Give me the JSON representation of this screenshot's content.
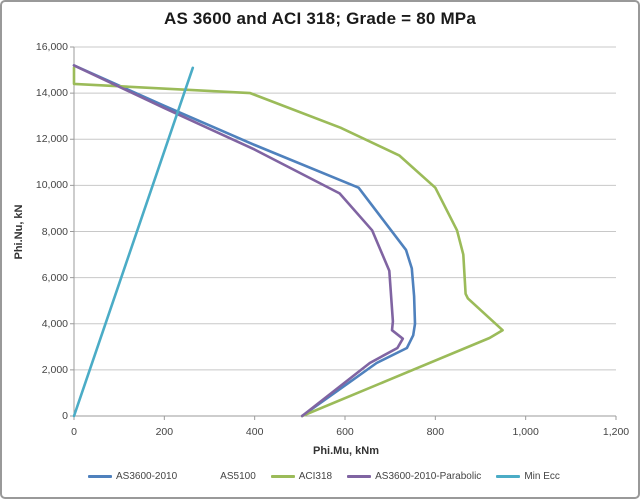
{
  "title": "AS 3600 and ACI 318; Grade = 80 MPa",
  "y_axis": {
    "title": "Phi.Nu, kN",
    "tick_labels": [
      "0",
      "2,000",
      "4,000",
      "6,000",
      "8,000",
      "10,000",
      "12,000",
      "14,000",
      "16,000"
    ],
    "tick_values": [
      0,
      2000,
      4000,
      6000,
      8000,
      10000,
      12000,
      14000,
      16000
    ]
  },
  "x_axis": {
    "title": "Phi.Mu, kNm",
    "tick_labels": [
      "0",
      "200",
      "400",
      "600",
      "800",
      "1,000",
      "1,200"
    ],
    "tick_values": [
      0,
      200,
      400,
      600,
      800,
      1000,
      1200
    ]
  },
  "legend": [
    {
      "label": "AS3600-2010",
      "color": "#4F81BD",
      "swatch": true
    },
    {
      "label": "AS5100",
      "color": "",
      "swatch": false
    },
    {
      "label": "ACI318",
      "color": "#9BBB59",
      "swatch": true
    },
    {
      "label": "AS3600-2010-Parabolic",
      "color": "#8064A2",
      "swatch": true
    },
    {
      "label": "Min Ecc",
      "color": "#4BACC6",
      "swatch": true
    }
  ],
  "colors": {
    "gridline": "#c8c8c8",
    "axis": "#9b9b9b",
    "background": "#ffffff"
  },
  "chart_data": {
    "type": "line",
    "title": "AS 3600 and ACI 318; Grade = 80 MPa",
    "xlabel": "Phi.Mu, kNm",
    "ylabel": "Phi.Nu, kN",
    "xlim": [
      0,
      1200
    ],
    "ylim": [
      0,
      16000
    ],
    "x_tick_step": 200,
    "y_tick_step": 2000,
    "grid": "horizontal",
    "legend_position": "bottom",
    "series": [
      {
        "name": "AS3600-2010",
        "color": "#4F81BD",
        "points": [
          [
            0,
            15200
          ],
          [
            200,
            13450
          ],
          [
            400,
            11750
          ],
          [
            630,
            9900
          ],
          [
            700,
            8100
          ],
          [
            735,
            7200
          ],
          [
            748,
            6400
          ],
          [
            753,
            5200
          ],
          [
            755,
            4000
          ],
          [
            751,
            3500
          ],
          [
            737,
            2950
          ],
          [
            670,
            2300
          ],
          [
            505,
            0
          ]
        ]
      },
      {
        "name": "AS5100",
        "color": null,
        "points": []
      },
      {
        "name": "ACI318",
        "color": "#9BBB59",
        "points": [
          [
            0,
            15100
          ],
          [
            0,
            14400
          ],
          [
            390,
            14000
          ],
          [
            590,
            12500
          ],
          [
            720,
            11300
          ],
          [
            800,
            9900
          ],
          [
            848,
            8050
          ],
          [
            862,
            7000
          ],
          [
            867,
            5300
          ],
          [
            872,
            5100
          ],
          [
            949,
            3720
          ],
          [
            920,
            3380
          ],
          [
            505,
            0
          ]
        ]
      },
      {
        "name": "AS3600-2010-Parabolic",
        "color": "#8064A2",
        "points": [
          [
            0,
            15200
          ],
          [
            200,
            13350
          ],
          [
            400,
            11550
          ],
          [
            588,
            9650
          ],
          [
            660,
            8050
          ],
          [
            698,
            6300
          ],
          [
            706,
            4100
          ],
          [
            704,
            3720
          ],
          [
            728,
            3350
          ],
          [
            716,
            2950
          ],
          [
            655,
            2300
          ],
          [
            505,
            0
          ]
        ]
      },
      {
        "name": "Min Ecc",
        "color": "#4BACC6",
        "points": [
          [
            0,
            0
          ],
          [
            263,
            15100
          ]
        ]
      }
    ]
  }
}
